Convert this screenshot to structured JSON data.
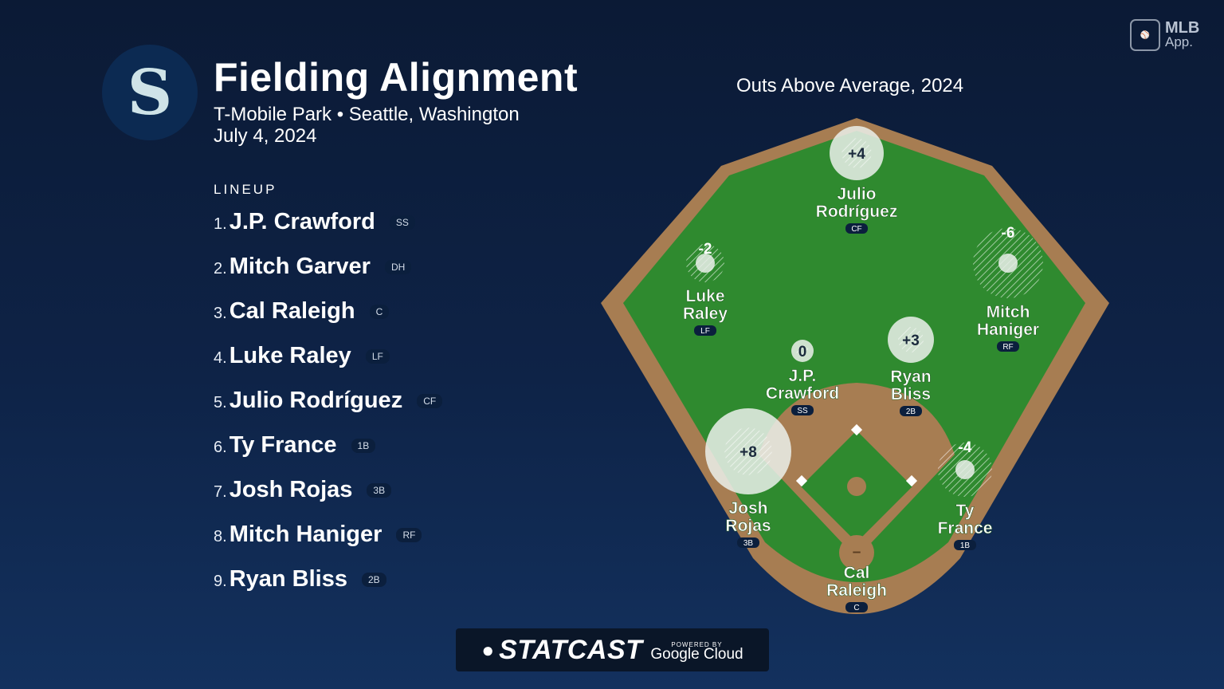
{
  "header": {
    "title": "Fielding Alignment",
    "subtitle": "T-Mobile Park • Seattle, Washington",
    "date": "July 4, 2024",
    "team_logo_icon": "mariners-compass-s-icon"
  },
  "brand": {
    "mlb_line1": "MLB",
    "mlb_line2": "App."
  },
  "lineup": {
    "heading": "LINEUP",
    "players": [
      {
        "num": "1.",
        "name": "J.P. Crawford",
        "pos": "SS"
      },
      {
        "num": "2.",
        "name": "Mitch Garver",
        "pos": "DH"
      },
      {
        "num": "3.",
        "name": "Cal Raleigh",
        "pos": "C"
      },
      {
        "num": "4.",
        "name": "Luke Raley",
        "pos": "LF"
      },
      {
        "num": "5.",
        "name": "Julio Rodríguez",
        "pos": "CF"
      },
      {
        "num": "6.",
        "name": "Ty France",
        "pos": "1B"
      },
      {
        "num": "7.",
        "name": "Josh Rojas",
        "pos": "3B"
      },
      {
        "num": "8.",
        "name": "Mitch Haniger",
        "pos": "RF"
      },
      {
        "num": "9.",
        "name": "Ryan Bliss",
        "pos": "2B"
      }
    ]
  },
  "chart_data": {
    "type": "scatter",
    "title": "Outs Above Average, 2024",
    "points": [
      {
        "pos": "CF",
        "name_line1": "Julio",
        "name_line2": "Rodríguez",
        "oaa": "+4",
        "value": 4
      },
      {
        "pos": "LF",
        "name_line1": "Luke",
        "name_line2": "Raley",
        "oaa": "-2",
        "value": -2
      },
      {
        "pos": "RF",
        "name_line1": "Mitch",
        "name_line2": "Haniger",
        "oaa": "-6",
        "value": -6
      },
      {
        "pos": "SS",
        "name_line1": "J.P.",
        "name_line2": "Crawford",
        "oaa": "0",
        "value": 0
      },
      {
        "pos": "2B",
        "name_line1": "Ryan",
        "name_line2": "Bliss",
        "oaa": "+3",
        "value": 3
      },
      {
        "pos": "3B",
        "name_line1": "Josh",
        "name_line2": "Rojas",
        "oaa": "+8",
        "value": 8
      },
      {
        "pos": "1B",
        "name_line1": "Ty",
        "name_line2": "France",
        "oaa": "-4",
        "value": -4
      },
      {
        "pos": "C",
        "name_line1": "Cal",
        "name_line2": "Raleigh",
        "oaa": "–",
        "value": null
      }
    ]
  },
  "footer": {
    "statcast": "STATCAST",
    "powered_by": "POWERED BY",
    "google_cloud": "Google Cloud"
  },
  "colors": {
    "grass": "#2f8a2f",
    "dirt": "#a77d52",
    "bubble_positive": "#e6ebe6",
    "bubble_negative": "#dfe6df"
  }
}
